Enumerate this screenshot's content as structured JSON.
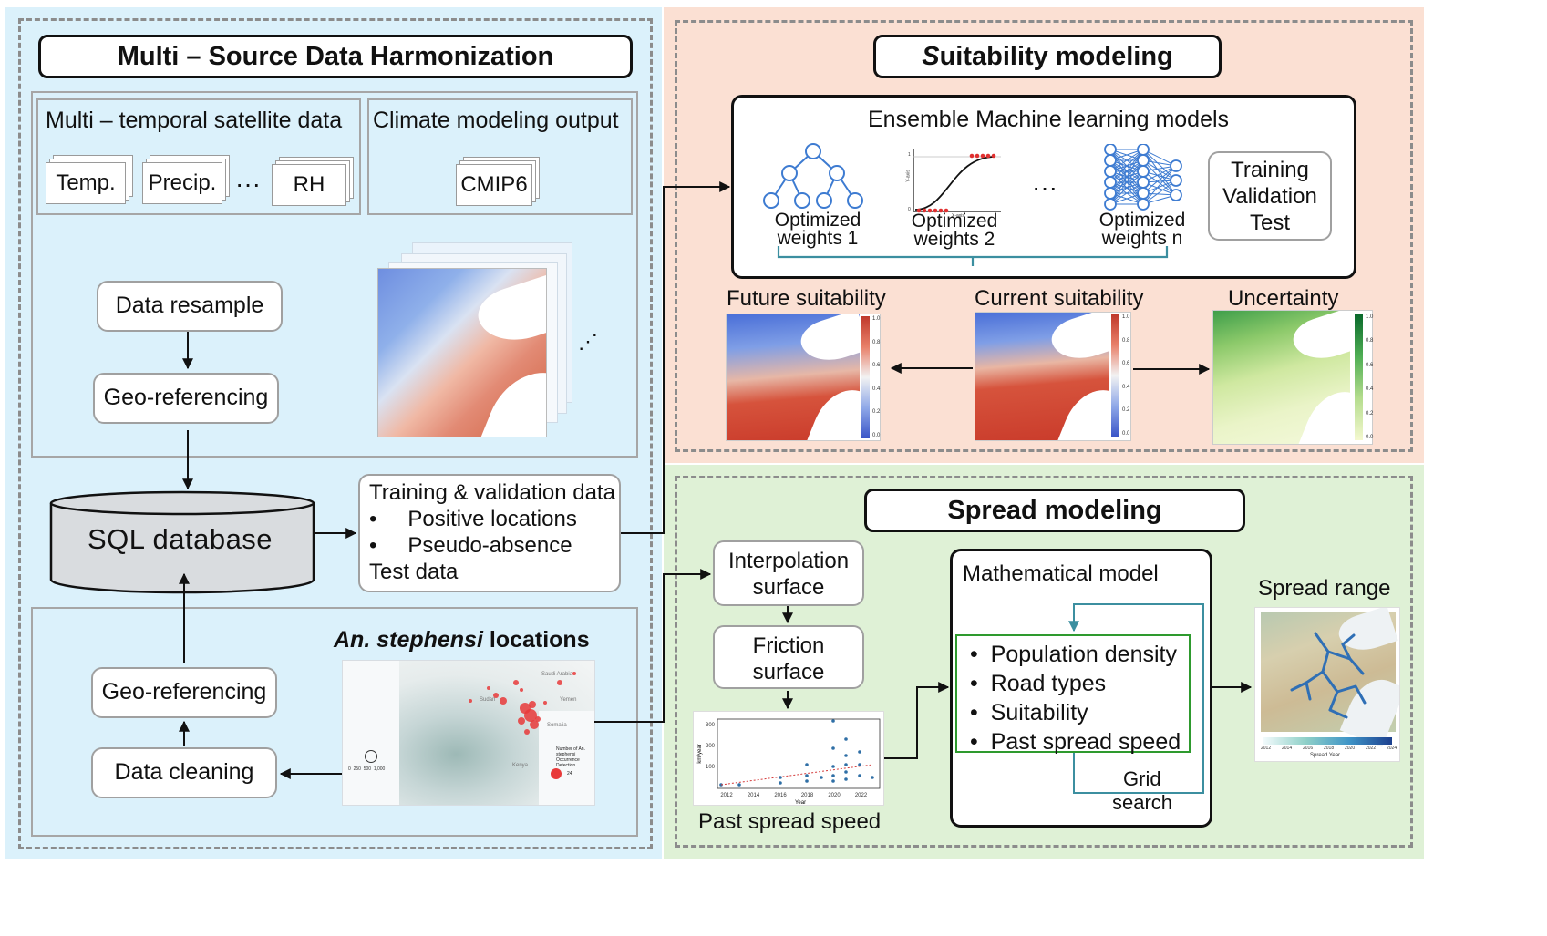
{
  "harmonization": {
    "title": "Multi – Source Data Harmonization",
    "satellite_title": "Multi – temporal satellite data",
    "climate_title": "Climate modeling output",
    "layers": [
      "Temp.",
      "Precip.",
      "RH"
    ],
    "layers_ellipsis": "···",
    "climate_layer": "CMIP6",
    "resample": "Data resample",
    "georef_top": "Geo-referencing",
    "map_ellipsis": "⋰",
    "database": "SQL database",
    "training_title": "Training & validation data",
    "training_items": [
      "Positive locations",
      "Pseudo-absence"
    ],
    "test_data": "Test data",
    "locations_title_italic": "An. stephensi",
    "locations_title_rest": " locations",
    "georef_bottom": "Geo-referencing",
    "cleaning": "Data cleaning",
    "mini_map_labels": [
      "Saudi Arabia",
      "Sudan",
      "Yemen",
      "Somalia",
      "Kenya"
    ],
    "mini_legend_title": "Number of An. stephensi Occurrence Detection",
    "mini_legend_value": "24",
    "mini_scale": [
      "0",
      "250",
      "500",
      "1,000"
    ]
  },
  "suitability": {
    "title_italic": "S",
    "title_rest": "uitability modeling",
    "ensemble_title": "Ensemble Machine learning models",
    "models": [
      "Optimized weights 1",
      "Optimized weights 2",
      "Optimized weights n"
    ],
    "models_ellipsis": "···",
    "split": [
      "Training",
      "Validation",
      "Test"
    ],
    "sigmoid_axis_x": "X-axis",
    "sigmoid_axis_y": "Y-axis",
    "sigmoid_tick_1": "1",
    "sigmoid_tick_0": "0",
    "future": "Future suitability",
    "current": "Current suitability",
    "uncertainty": "Uncertainty",
    "colorbar_ticks": [
      "1.0",
      "0.8",
      "0.6",
      "0.4",
      "0.2",
      "0.0"
    ]
  },
  "spread": {
    "title": "Spread modeling",
    "interpolation": "Interpolation surface",
    "friction": "Friction surface",
    "past_speed_caption": "Past spread speed",
    "math_title": "Mathematical model",
    "factors": [
      "Population density",
      "Road types",
      "Suitability",
      "Past spread speed"
    ],
    "grid": "Grid",
    "search": "search",
    "range_title": "Spread range",
    "speed_chart": {
      "ylabel": "km/year",
      "xlabel": "Year",
      "x_ticks": [
        "2012",
        "2014",
        "2016",
        "2018",
        "2020",
        "2022"
      ],
      "y_ticks": [
        "100",
        "200",
        "300"
      ]
    },
    "range_ticks": [
      "2012",
      "2014",
      "2016",
      "2018",
      "2020",
      "2022",
      "2024"
    ],
    "range_caption": "Spread Year"
  },
  "colors": {
    "left_bg": "#dbf1fb",
    "top_right_bg": "#fbe0d3",
    "bottom_right_bg": "#dff1d6",
    "green_box": "#2e9a2e",
    "teal_line": "#3c8fa0"
  }
}
